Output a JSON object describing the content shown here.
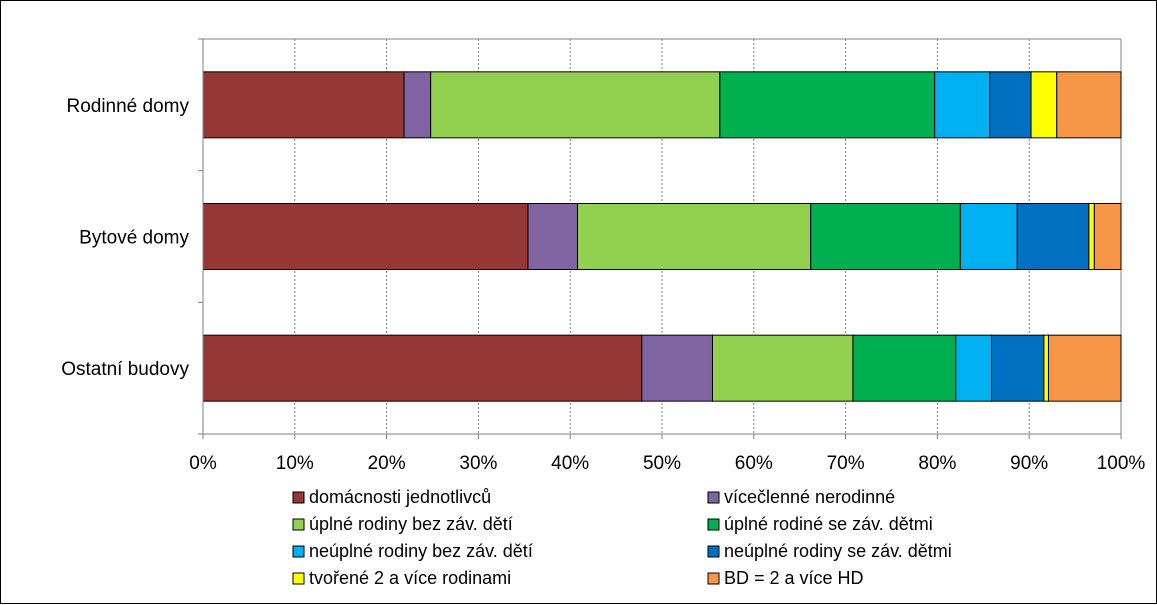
{
  "chart_data": {
    "type": "bar",
    "orientation": "horizontal",
    "stacked": "percent",
    "categories": [
      "Rodinné domy",
      "Bytové domy",
      "Ostatní budovy"
    ],
    "xlim": [
      0,
      100
    ],
    "x_ticks": [
      "0%",
      "10%",
      "20%",
      "30%",
      "40%",
      "50%",
      "60%",
      "70%",
      "80%",
      "90%",
      "100%"
    ],
    "grid": true,
    "legend_position": "bottom",
    "series": [
      {
        "name": "domácnosti jednotlivců",
        "color": "#953735",
        "values": [
          21.9,
          35.4,
          47.8
        ]
      },
      {
        "name": "vícečlenné nerodinné",
        "color": "#8064A2",
        "values": [
          2.9,
          5.4,
          7.7
        ]
      },
      {
        "name": "úplné rodiny bez záv. dětí",
        "color": "#92D050",
        "values": [
          31.5,
          25.4,
          15.3
        ]
      },
      {
        "name": "úplné rodiné se záv. dětmi",
        "color": "#00B050",
        "values": [
          23.4,
          16.3,
          11.2
        ]
      },
      {
        "name": "neúplné rodiny bez záv. dětí",
        "color": "#00B0F0",
        "values": [
          6.0,
          6.2,
          3.9
        ]
      },
      {
        "name": "neúplné rodiny se záv. dětmi",
        "color": "#0070C0",
        "values": [
          4.5,
          7.8,
          5.7
        ]
      },
      {
        "name": "tvořené 2 a více rodinami",
        "color": "#FFFF00",
        "values": [
          2.8,
          0.6,
          0.5
        ]
      },
      {
        "name": "BD = 2 a více HD",
        "color": "#F79646",
        "values": [
          7.0,
          2.9,
          7.9
        ]
      }
    ]
  }
}
